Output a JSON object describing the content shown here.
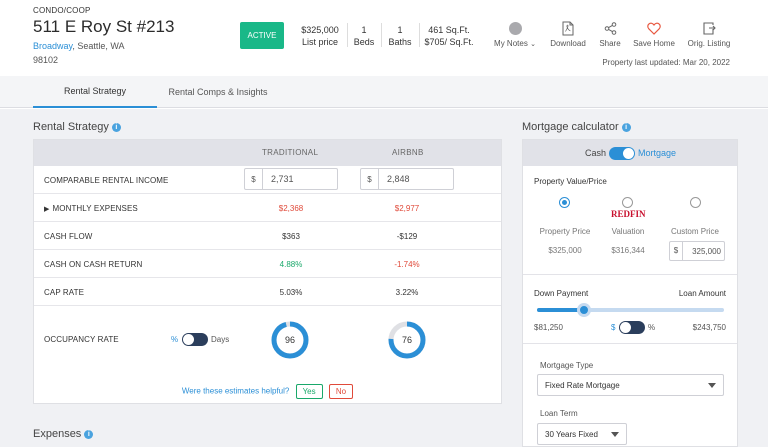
{
  "header": {
    "property_type": "CONDO/COOP",
    "address": "511 E Roy St #213",
    "neighborhood": "Broadway",
    "city_state": ", Seattle, WA",
    "zip": "98102",
    "status": "ACTIVE",
    "price": "$325,000",
    "price_label": "List price",
    "beds": "1",
    "beds_label": "Beds",
    "baths": "1",
    "baths_label": "Baths",
    "sqft": "461 Sq.Ft.",
    "price_per_sqft": "$705/ Sq.Ft.",
    "actions": {
      "notes": "My Notes",
      "download": "Download",
      "share": "Share",
      "save": "Save Home",
      "listing": "Orig. Listing"
    },
    "updated": "Property last updated: Mar 20, 2022"
  },
  "tabs": {
    "rental_strategy": "Rental Strategy",
    "comps": "Rental Comps & Insights"
  },
  "rental": {
    "title": "Rental Strategy",
    "col_traditional": "TRADITIONAL",
    "col_airbnb": "AIRBNB",
    "rows": {
      "income": {
        "label": "COMPARABLE RENTAL INCOME",
        "prefix": "$",
        "traditional": "2,731",
        "airbnb": "2,848"
      },
      "expenses": {
        "label": "MONTHLY EXPENSES",
        "traditional": "$2,368",
        "airbnb": "$2,977"
      },
      "cash_flow": {
        "label": "CASH FLOW",
        "traditional": "$363",
        "airbnb": "-$129"
      },
      "coc": {
        "label": "CASH ON CASH RETURN",
        "traditional": "4.88%",
        "airbnb": "-1.74%"
      },
      "cap": {
        "label": "CAP RATE",
        "traditional": "5.03%",
        "airbnb": "3.22%"
      },
      "occupancy": {
        "label": "OCCUPANCY RATE",
        "unit_pct": "%",
        "unit_days": "Days",
        "traditional": "96",
        "airbnb": "76",
        "traditional_fraction": 0.96,
        "airbnb_fraction": 0.76
      }
    },
    "helpful": {
      "question": "Were these estimates helpful?",
      "yes": "Yes",
      "no": "No"
    }
  },
  "expenses_title": "Expenses",
  "mortgage": {
    "title": "Mortgage calculator",
    "toggle_cash": "Cash",
    "toggle_mortgage": "Mortgage",
    "pv_label": "Property Value/Price",
    "opt_property": {
      "label": "Property Price",
      "value": "$325,000"
    },
    "opt_redfin": {
      "logo": "REDFIN",
      "label": "Valuation",
      "value": "$316,344"
    },
    "opt_custom": {
      "label": "Custom Price",
      "prefix": "$",
      "value": "325,000"
    },
    "down_payment_label": "Down Payment",
    "loan_amount_label": "Loan Amount",
    "down_payment": "$81,250",
    "loan_amount": "$243,750",
    "down_payment_fraction": 0.25,
    "unit_dollar": "$",
    "unit_pct": "%",
    "mortgage_type_label": "Mortgage Type",
    "mortgage_type": "Fixed Rate Mortgage",
    "loan_term_label": "Loan Term",
    "loan_term": "30 Years Fixed"
  },
  "colors": {
    "accent": "#2b8fd6",
    "active_badge": "#19b888",
    "negative": "#e04a3a",
    "positive": "#19a86a",
    "save_heart": "#e8573f"
  }
}
